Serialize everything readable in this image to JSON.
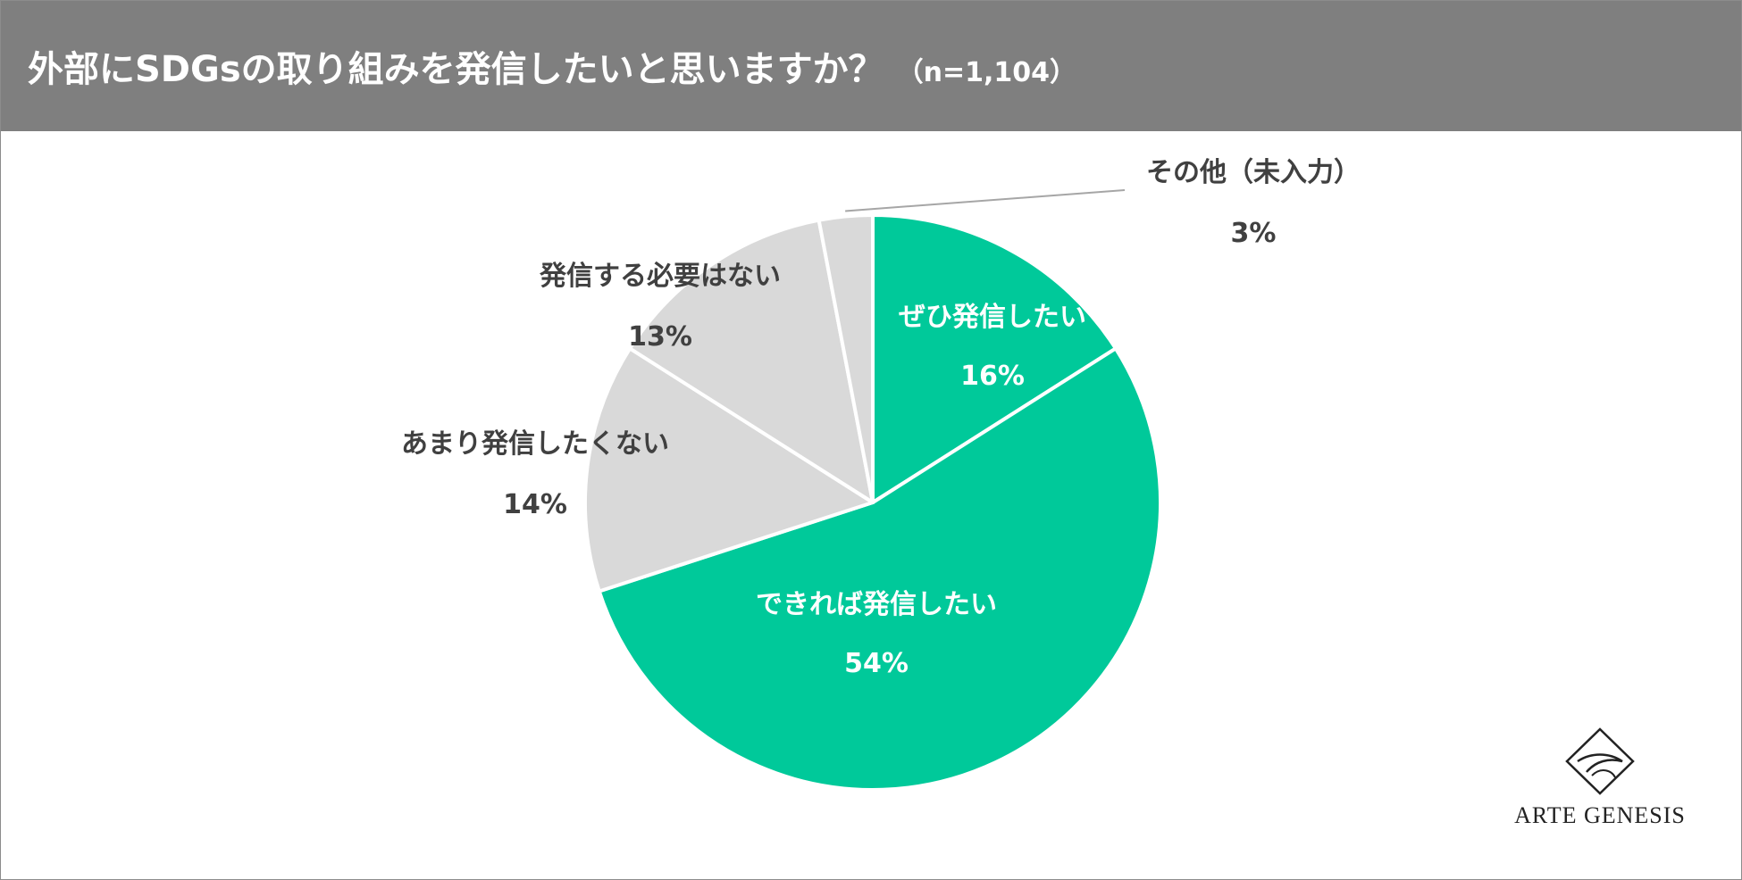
{
  "header": {
    "title": "外部にSDGsの取り組みを発信したいと思いますか？",
    "sample": "（n=1,104）"
  },
  "chart_data": {
    "type": "pie",
    "title": "外部にSDGsの取り組みを発信したいと思いますか？",
    "sample_size": "n=1,104",
    "slices": [
      {
        "label": "ぜひ発信したい",
        "value": 16,
        "value_label": "16%",
        "color": "#00c99a",
        "text_color": "#ffffff"
      },
      {
        "label": "できれば発信したい",
        "value": 54,
        "value_label": "54%",
        "color": "#00c99a",
        "text_color": "#ffffff"
      },
      {
        "label": "あまり発信したくない",
        "value": 14,
        "value_label": "14%",
        "color": "#d9d9d9",
        "text_color": "#404040"
      },
      {
        "label": "発信する必要はない",
        "value": 13,
        "value_label": "13%",
        "color": "#d9d9d9",
        "text_color": "#404040"
      },
      {
        "label": "その他（未入力）",
        "value": 3,
        "value_label": "3%",
        "color": "#d9d9d9",
        "text_color": "#404040"
      }
    ],
    "start_angle_deg": 0,
    "direction": "clockwise"
  },
  "logo": {
    "text": "ARTE GENESIS"
  }
}
